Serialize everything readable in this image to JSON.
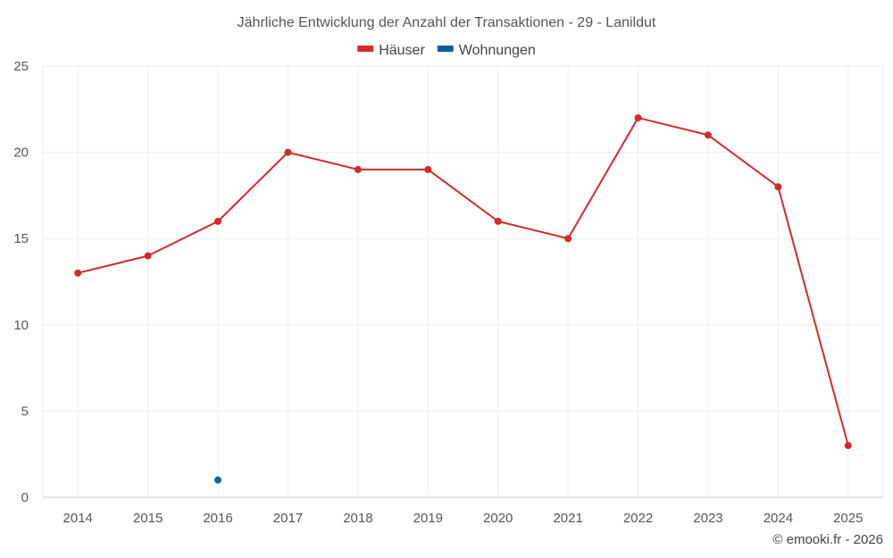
{
  "chart_data": {
    "type": "line",
    "title": "Jährliche Entwicklung der Anzahl der Transaktionen - 29 - Lanildut",
    "categories": [
      "2014",
      "2015",
      "2016",
      "2017",
      "2018",
      "2019",
      "2020",
      "2021",
      "2022",
      "2023",
      "2024",
      "2025"
    ],
    "series": [
      {
        "name": "Häuser",
        "color": "#d42a2a",
        "values": [
          13,
          14,
          16,
          20,
          19,
          19,
          16,
          15,
          22,
          21,
          18,
          3
        ]
      },
      {
        "name": "Wohnungen",
        "color": "#0b5fa0",
        "values": [
          null,
          null,
          1,
          null,
          null,
          null,
          null,
          null,
          null,
          null,
          null,
          null
        ]
      }
    ],
    "ylim": [
      0,
      25
    ],
    "yticks": [
      0,
      5,
      10,
      15,
      20,
      25
    ],
    "grid": true,
    "legend_position": "top-center",
    "credit": "© emooki.fr - 2026"
  }
}
